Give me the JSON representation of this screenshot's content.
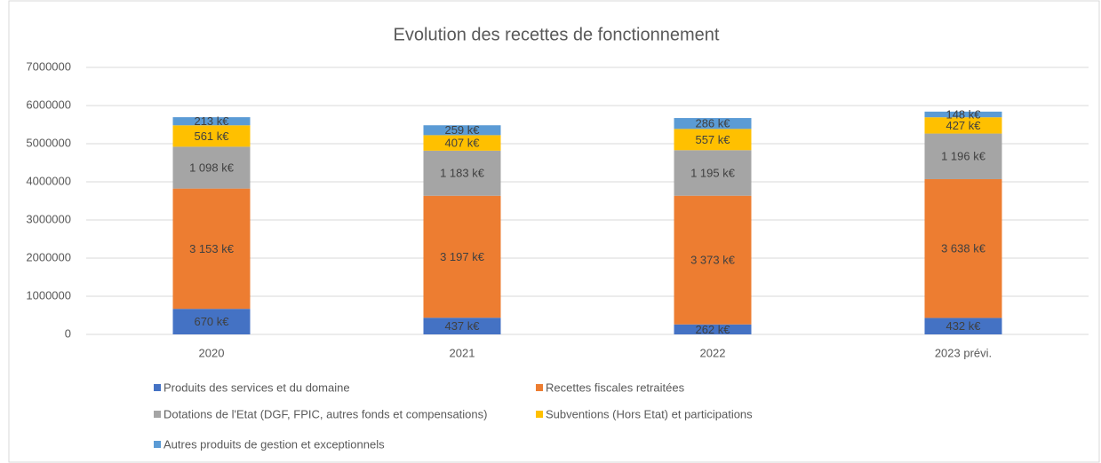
{
  "chart_data": {
    "type": "stacked_bar",
    "title": "Evolution des recettes de fonctionnement",
    "categories": [
      "2020",
      "2021",
      "2022",
      "2023 prévi."
    ],
    "series": [
      {
        "name": "Produits des services et du domaine",
        "color": "#4472c4",
        "values": [
          670000,
          437000,
          262000,
          432000
        ],
        "value_labels": [
          "670 k€",
          "437 k€",
          "262 k€",
          "432 k€"
        ]
      },
      {
        "name": "Recettes fiscales retraitées",
        "color": "#ed7d31",
        "values": [
          3153000,
          3197000,
          3373000,
          3638000
        ],
        "value_labels": [
          "3 153 k€",
          "3 197 k€",
          "3 373 k€",
          "3 638 k€"
        ]
      },
      {
        "name": "Dotations de l'Etat (DGF, FPIC, autres fonds et compensations)",
        "color": "#a5a5a5",
        "values": [
          1098000,
          1183000,
          1195000,
          1196000
        ],
        "value_labels": [
          "1 098 k€",
          "1 183 k€",
          "1 195 k€",
          "1 196 k€"
        ]
      },
      {
        "name": "Subventions (Hors Etat) et participations",
        "color": "#ffc000",
        "values": [
          561000,
          407000,
          557000,
          427000
        ],
        "value_labels": [
          "561 k€",
          "407 k€",
          "557 k€",
          "427 k€"
        ]
      },
      {
        "name": "Autres produits de gestion et exceptionnels",
        "color": "#5b9bd5",
        "values": [
          213000,
          259000,
          286000,
          148000
        ],
        "value_labels": [
          "213 k€",
          "259 k€",
          "286 k€",
          "148 k€"
        ]
      }
    ],
    "ylim": [
      0,
      7000000
    ],
    "yticks": [
      0,
      1000000,
      2000000,
      3000000,
      4000000,
      5000000,
      6000000,
      7000000
    ],
    "grid": true,
    "legend": "bottom"
  }
}
